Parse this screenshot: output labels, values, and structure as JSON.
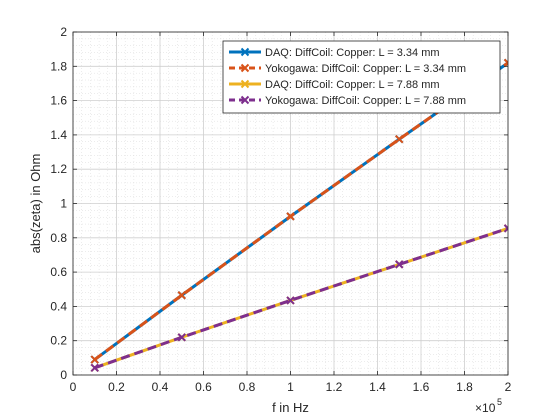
{
  "chart_data": {
    "type": "line",
    "title": "",
    "xlabel": "f in Hz",
    "ylabel": "abs(zeta) in Ohm",
    "x_exponent_label": "10",
    "x_exponent_power": "5",
    "xlim": [
      0,
      2
    ],
    "ylim": [
      0,
      2
    ],
    "x_ticks": [
      0,
      0.2,
      0.4,
      0.6,
      0.8,
      1,
      1.2,
      1.4,
      1.6,
      1.8,
      2
    ],
    "x_tick_labels": [
      "0",
      "0.2",
      "0.4",
      "0.6",
      "0.8",
      "1",
      "1.2",
      "1.4",
      "1.6",
      "1.8",
      "2"
    ],
    "y_ticks": [
      0,
      0.2,
      0.4,
      0.6,
      0.8,
      1,
      1.2,
      1.4,
      1.6,
      1.8,
      2
    ],
    "y_tick_labels": [
      "0",
      "0.2",
      "0.4",
      "0.6",
      "0.8",
      "1",
      "1.2",
      "1.4",
      "1.6",
      "1.8",
      "2"
    ],
    "grid": true,
    "minor_grid": true,
    "legend_position": "top-right",
    "x": [
      0.1,
      0.5,
      1.0,
      1.5,
      2.0
    ],
    "series": [
      {
        "name": "DAQ: DiffCoil: Copper: L = 3.34 mm",
        "values": [
          0.09,
          0.465,
          0.925,
          1.375,
          1.82
        ],
        "color": "#0072BD",
        "dash": "solid",
        "marker": "x"
      },
      {
        "name": "Yokogawa: DiffCoil: Copper: L = 3.34 mm",
        "values": [
          0.09,
          0.465,
          0.925,
          1.375,
          1.82
        ],
        "color": "#D95319",
        "dash": "dashed",
        "marker": "x"
      },
      {
        "name": "DAQ: DiffCoil: Copper: L = 7.88 mm",
        "values": [
          0.042,
          0.22,
          0.435,
          0.645,
          0.855
        ],
        "color": "#EDB120",
        "dash": "solid",
        "marker": "x"
      },
      {
        "name": "Yokogawa: DiffCoil: Copper: L = 7.88 mm",
        "values": [
          0.042,
          0.22,
          0.435,
          0.645,
          0.855
        ],
        "color": "#7E2F8E",
        "dash": "dashed",
        "marker": "x"
      }
    ]
  }
}
